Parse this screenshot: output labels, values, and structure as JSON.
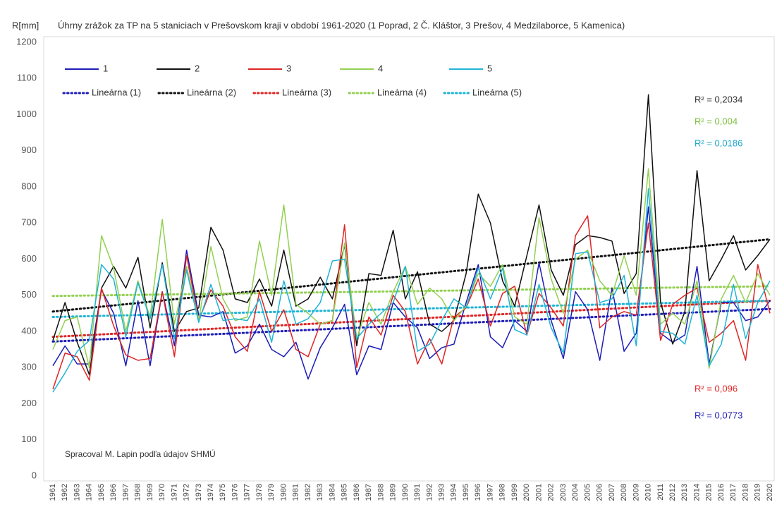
{
  "chart_data": {
    "type": "line",
    "y_label": "R[mm]",
    "title": "Úhrny zrážok za TP na 5 staniciach v Prešovskom kraji v období 1961-2020 (1 Poprad, 2 Č. Kláštor, 3 Prešov, 4 Medzilaborce, 5 Kamenica)",
    "x": [
      1961,
      1962,
      1963,
      1964,
      1965,
      1966,
      1967,
      1968,
      1969,
      1970,
      1971,
      1972,
      1973,
      1974,
      1975,
      1976,
      1977,
      1978,
      1979,
      1980,
      1981,
      1982,
      1983,
      1984,
      1985,
      1986,
      1987,
      1988,
      1989,
      1990,
      1991,
      1992,
      1993,
      1994,
      1995,
      1996,
      1997,
      1998,
      1999,
      2000,
      2001,
      2002,
      2003,
      2004,
      2005,
      2006,
      2007,
      2008,
      2009,
      2010,
      2011,
      2012,
      2013,
      2014,
      2015,
      2016,
      2017,
      2018,
      2019,
      2020
    ],
    "xlim": [
      1961,
      2020
    ],
    "ylim": [
      0,
      1200
    ],
    "yticks": [
      0,
      100,
      200,
      300,
      400,
      500,
      600,
      700,
      800,
      900,
      1000,
      1100,
      1200
    ],
    "grid": false,
    "series": [
      {
        "name": "1",
        "color": "#1c1cb8",
        "values": [
          305,
          360,
          310,
          310,
          515,
          450,
          305,
          485,
          305,
          510,
          360,
          625,
          445,
          440,
          455,
          340,
          360,
          420,
          350,
          330,
          370,
          268,
          355,
          410,
          475,
          280,
          360,
          350,
          480,
          440,
          410,
          325,
          355,
          365,
          480,
          585,
          385,
          355,
          430,
          400,
          590,
          430,
          325,
          510,
          460,
          320,
          520,
          345,
          395,
          745,
          395,
          370,
          390,
          580,
          310,
          480,
          480,
          430,
          440,
          485
        ]
      },
      {
        "name": "2",
        "color": "#111111",
        "values": [
          375,
          480,
          370,
          280,
          520,
          580,
          520,
          605,
          410,
          590,
          400,
          455,
          465,
          688,
          625,
          490,
          480,
          545,
          470,
          625,
          470,
          490,
          550,
          490,
          640,
          360,
          560,
          555,
          680,
          490,
          565,
          420,
          400,
          430,
          560,
          780,
          700,
          540,
          470,
          610,
          750,
          570,
          500,
          640,
          665,
          660,
          650,
          505,
          560,
          1055,
          480,
          365,
          455,
          845,
          540,
          600,
          665,
          570,
          610,
          655
        ]
      },
      {
        "name": "3",
        "color": "#e02424",
        "values": [
          240,
          340,
          330,
          265,
          520,
          415,
          335,
          320,
          325,
          510,
          330,
          610,
          430,
          515,
          470,
          385,
          345,
          510,
          400,
          460,
          350,
          330,
          420,
          430,
          695,
          300,
          440,
          390,
          500,
          455,
          310,
          380,
          310,
          440,
          465,
          545,
          415,
          505,
          525,
          390,
          505,
          465,
          415,
          665,
          720,
          410,
          440,
          455,
          445,
          700,
          375,
          475,
          500,
          520,
          370,
          395,
          430,
          320,
          585,
          450
        ]
      },
      {
        "name": "4",
        "color": "#92d050",
        "values": [
          350,
          430,
          440,
          300,
          665,
          575,
          400,
          540,
          440,
          710,
          420,
          580,
          430,
          635,
          490,
          430,
          440,
          650,
          500,
          750,
          475,
          450,
          420,
          430,
          645,
          380,
          480,
          420,
          510,
          580,
          475,
          520,
          490,
          430,
          470,
          560,
          525,
          585,
          440,
          420,
          715,
          545,
          450,
          600,
          625,
          540,
          500,
          610,
          500,
          850,
          420,
          450,
          420,
          540,
          298,
          490,
          555,
          480,
          560,
          500
        ]
      },
      {
        "name": "5",
        "color": "#1fb4d6",
        "values": [
          232,
          285,
          345,
          375,
          585,
          545,
          385,
          535,
          435,
          585,
          380,
          570,
          425,
          530,
          430,
          435,
          430,
          490,
          370,
          540,
          420,
          435,
          480,
          595,
          600,
          380,
          420,
          450,
          480,
          580,
          345,
          365,
          430,
          490,
          465,
          575,
          490,
          575,
          405,
          390,
          530,
          410,
          340,
          615,
          620,
          480,
          490,
          555,
          360,
          795,
          400,
          395,
          365,
          500,
          305,
          365,
          530,
          380,
          480,
          540
        ]
      }
    ],
    "trendlines": [
      {
        "name": "Lineárna (1)",
        "color": "#1c1cb8",
        "values": [
          372,
          462
        ]
      },
      {
        "name": "Lineárna (2)",
        "color": "#111111",
        "values": [
          455,
          655
        ]
      },
      {
        "name": "Lineárna (3)",
        "color": "#e02424",
        "values": [
          385,
          485
        ]
      },
      {
        "name": "Lineárna (4)",
        "color": "#92d050",
        "values": [
          498,
          525
        ]
      },
      {
        "name": "Lineárna (5)",
        "color": "#1fb4d6",
        "values": [
          440,
          485
        ]
      }
    ],
    "annotations": [
      {
        "text": "R² = 0,2034",
        "color": "#333333"
      },
      {
        "text": "R² = 0,004",
        "color": "#7fbf3f"
      },
      {
        "text": "R² = 0,0186",
        "color": "#1fa8cc"
      },
      {
        "text": "R² = 0,096",
        "color": "#e02424"
      },
      {
        "text": "R² = 0,0773",
        "color": "#1c1cb8"
      }
    ],
    "credit": "Spracoval M. Lapin podľa údajov SHMÚ"
  }
}
